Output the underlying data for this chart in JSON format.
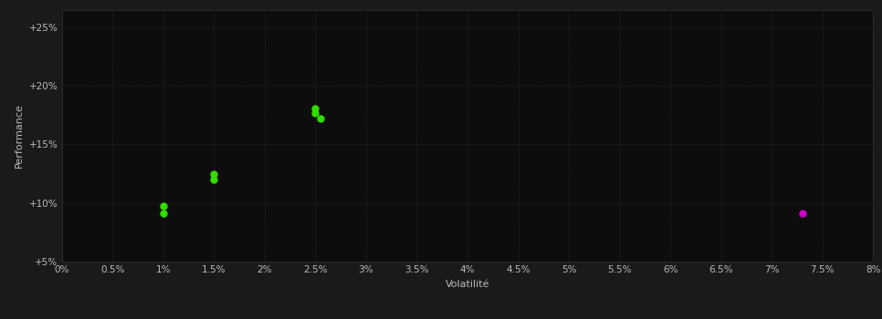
{
  "background_color": "#1a1a1a",
  "plot_bg_color": "#0d0d0d",
  "xlabel": "Volatilité",
  "ylabel": "Performance",
  "xlim": [
    0.0,
    0.08
  ],
  "ylim": [
    0.05,
    0.265
  ],
  "xtick_step": 0.005,
  "ytick_values": [
    0.05,
    0.1,
    0.15,
    0.2,
    0.25
  ],
  "ytick_labels": [
    "+5%",
    "+10%",
    "+15%",
    "+20%",
    "+25%"
  ],
  "green_points": [
    [
      0.01,
      0.0975
    ],
    [
      0.01,
      0.091
    ],
    [
      0.015,
      0.125
    ],
    [
      0.015,
      0.12
    ],
    [
      0.025,
      0.181
    ],
    [
      0.025,
      0.177
    ],
    [
      0.0255,
      0.172
    ]
  ],
  "magenta_points": [
    [
      0.073,
      0.091
    ]
  ],
  "green_color": "#33dd00",
  "magenta_color": "#cc00cc",
  "point_size": 25,
  "text_color": "#bbbbbb",
  "tick_color": "#bbbbbb",
  "axis_label_fontsize": 8,
  "tick_fontsize": 7.5,
  "figure_bg_color": "#1a1a1a",
  "grid_color": "#333333",
  "grid_linewidth": 0.5,
  "spine_color": "#333333"
}
